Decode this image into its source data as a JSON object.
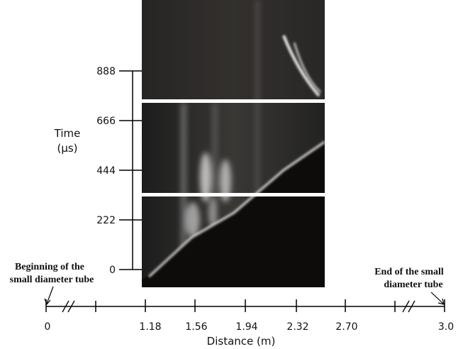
{
  "time_axis": {
    "label": [
      "Time",
      "(μs)"
    ],
    "ticks": [
      "0",
      "222",
      "444",
      "666",
      "888"
    ]
  },
  "distance_axis": {
    "label": "Distance (m)",
    "ticks": [
      "0",
      "1.18",
      "1.56",
      "1.94",
      "2.32",
      "2.70",
      "3.0"
    ]
  },
  "annotations": {
    "start": [
      "Beginning of the",
      "small diameter tube"
    ],
    "end": [
      "End of the small",
      "diameter tube"
    ]
  }
}
